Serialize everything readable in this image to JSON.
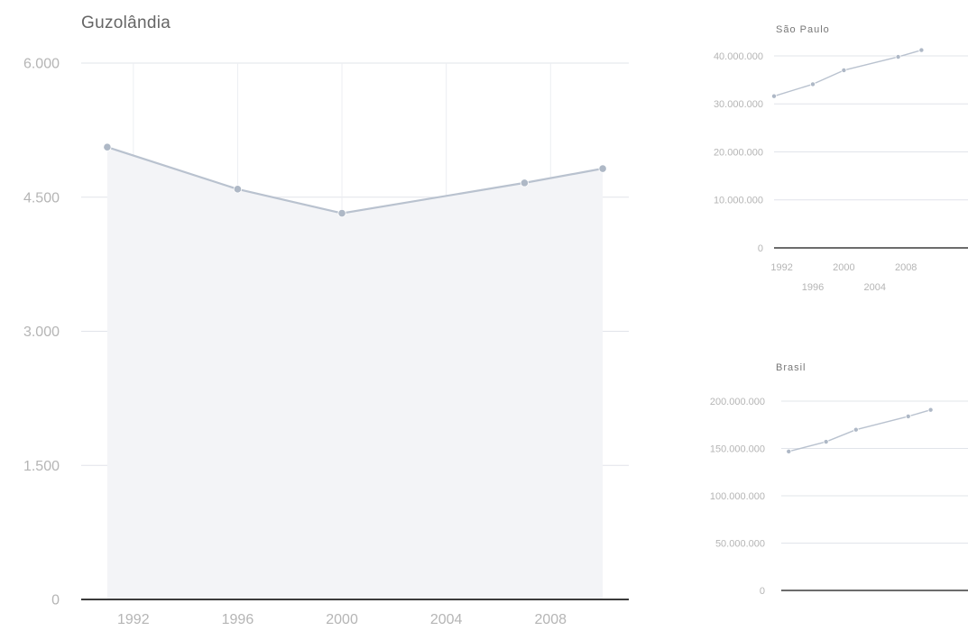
{
  "colors": {
    "line": "#b9c2cf",
    "point": "#aeb8c6",
    "area": "#f3f4f7",
    "grid": "#e1e4ea",
    "axis": "#3b3b3b",
    "title": "#777777",
    "main_title": "#666666",
    "tick": "#b5b5b5"
  },
  "chart_data": [
    {
      "type": "area",
      "title": "Guzolândia",
      "xlabel": "",
      "ylabel": "",
      "x_ticks": [
        "1992",
        "1996",
        "2000",
        "2004",
        "2008"
      ],
      "y_ticks": [
        "0",
        "1.500",
        "3.000",
        "4.500",
        "6.000"
      ],
      "ylim": [
        0,
        6000
      ],
      "grid": true,
      "series": [
        {
          "x": [
            1991,
            1996,
            2000,
            2007,
            2010
          ],
          "values": [
            5060,
            4590,
            4320,
            4660,
            4820
          ]
        }
      ]
    },
    {
      "type": "line",
      "title": "São Paulo",
      "xlabel": "",
      "ylabel": "",
      "x_ticks_upper": [
        "1992",
        "2000",
        "2008"
      ],
      "x_ticks_lower": [
        "1996",
        "2004"
      ],
      "y_ticks": [
        "0",
        "10.000.000",
        "20.000.000",
        "30.000.000",
        "40.000.000"
      ],
      "ylim": [
        0,
        40000000
      ],
      "grid": true,
      "series": [
        {
          "x": [
            1991,
            1996,
            2000,
            2007,
            2010
          ],
          "values": [
            31600000,
            34100000,
            37000000,
            39800000,
            41200000
          ]
        }
      ]
    },
    {
      "type": "line",
      "title": "Brasil",
      "xlabel": "",
      "ylabel": "",
      "y_ticks": [
        "0",
        "50.000.000",
        "100.000.000",
        "150.000.000",
        "200.000.000"
      ],
      "ylim": [
        0,
        200000000
      ],
      "grid": true,
      "series": [
        {
          "x": [
            1991,
            1996,
            2000,
            2007,
            2010
          ],
          "values": [
            146800000,
            157100000,
            169800000,
            183900000,
            190800000
          ]
        }
      ]
    }
  ]
}
